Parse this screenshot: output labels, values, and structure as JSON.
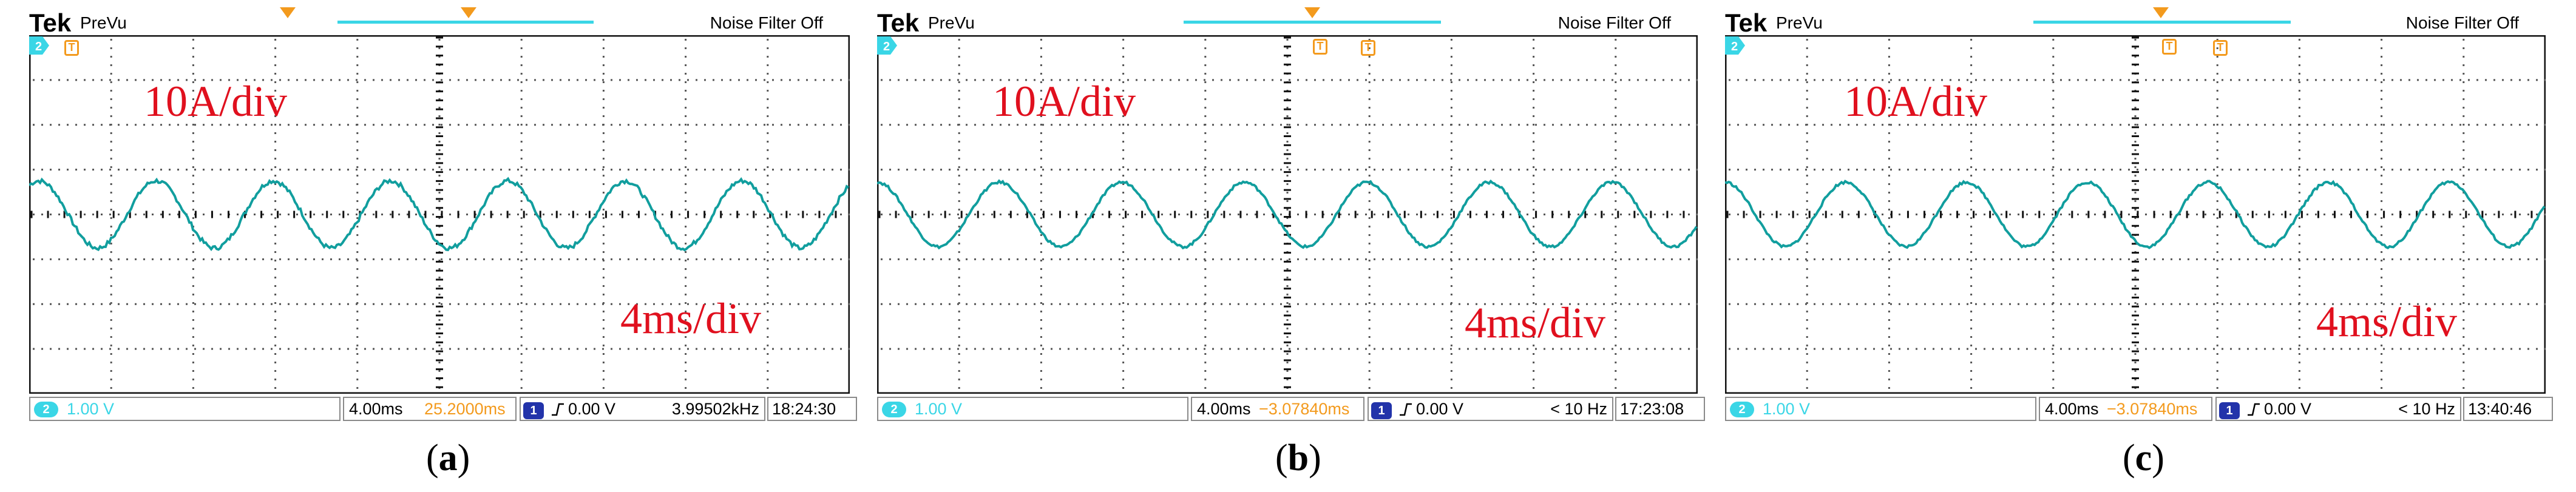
{
  "brand": "Tek",
  "mode": "PreVu",
  "noise_filter": "Noise Filter Off",
  "channel_badge": "2",
  "trigger_channel_badge": "1",
  "trigger_marker": "T",
  "annotations": {
    "vertical_scale": "10A/div",
    "time_scale": "4ms/div"
  },
  "colors": {
    "trace": "#119e9e",
    "accent_cyan": "#3ad6e6",
    "trigger_orange": "#f39a1d",
    "label_red": "#e0101e"
  },
  "panels": [
    {
      "caption_letter": "a",
      "ch2_scale": "1.00 V",
      "timebase": "4.00ms",
      "trigger_position": "25.2000ms",
      "trigger_level": "0.00 V",
      "frequency": "3.99502kHz",
      "time": "18:24:30",
      "waveform": {
        "cycles": 7.0,
        "phase_deg": 60,
        "amplitude_div": 0.75,
        "noise_div": 0.05
      }
    },
    {
      "caption_letter": "b",
      "ch2_scale": "1.00 V",
      "timebase": "4.00ms",
      "trigger_position": "−3.07840ms",
      "trigger_level": "0.00 V",
      "frequency": "< 10 Hz",
      "time": "17:23:08",
      "waveform": {
        "cycles": 6.7,
        "phase_deg": 90,
        "amplitude_div": 0.72,
        "noise_div": 0.03
      }
    },
    {
      "caption_letter": "c",
      "ch2_scale": "1.00 V",
      "timebase": "4.00ms",
      "trigger_position": "−3.07840ms",
      "trigger_level": "0.00 V",
      "frequency": "< 10 Hz",
      "time": "13:40:46",
      "waveform": {
        "cycles": 6.8,
        "phase_deg": 90,
        "amplitude_div": 0.72,
        "noise_div": 0.03
      }
    }
  ]
}
